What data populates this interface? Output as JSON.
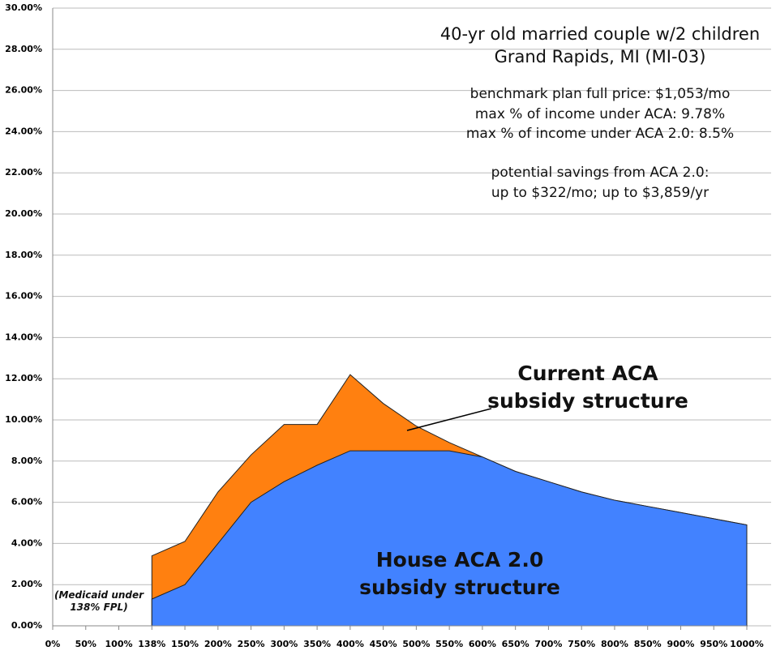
{
  "chart_data": {
    "type": "area",
    "categories": [
      "0%",
      "50%",
      "100%",
      "138%",
      "150%",
      "200%",
      "250%",
      "300%",
      "350%",
      "400%",
      "450%",
      "500%",
      "550%",
      "600%",
      "650%",
      "700%",
      "750%",
      "800%",
      "850%",
      "900%",
      "950%",
      "1000%"
    ],
    "series": [
      {
        "name": "Current ACA subsidy structure",
        "color": "#ff8010",
        "values": [
          null,
          null,
          null,
          3.4,
          4.1,
          6.5,
          8.3,
          9.78,
          9.78,
          12.2,
          10.8,
          9.7,
          8.9,
          8.2,
          7.5,
          7.0,
          6.5,
          6.1,
          5.8,
          5.5,
          5.2,
          4.9
        ]
      },
      {
        "name": "House ACA 2.0 subsidy structure",
        "color": "#4282ff",
        "values": [
          null,
          null,
          null,
          1.3,
          2.0,
          4.0,
          6.0,
          7.0,
          7.8,
          8.5,
          8.5,
          8.5,
          8.5,
          8.2,
          7.5,
          7.0,
          6.5,
          6.1,
          5.8,
          5.5,
          5.2,
          4.9
        ]
      }
    ],
    "ylim": [
      0,
      30
    ],
    "yticks": [
      {
        "value": 0,
        "label": "0.00%"
      },
      {
        "value": 2,
        "label": "2.00%"
      },
      {
        "value": 4,
        "label": "4.00%"
      },
      {
        "value": 6,
        "label": "6.00%"
      },
      {
        "value": 8,
        "label": "8.00%"
      },
      {
        "value": 10,
        "label": "10.00%"
      },
      {
        "value": 12,
        "label": "12.00%"
      },
      {
        "value": 14,
        "label": "14.00%"
      },
      {
        "value": 16,
        "label": "16.00%"
      },
      {
        "value": 18,
        "label": "18.00%"
      },
      {
        "value": 20,
        "label": "20.00%"
      },
      {
        "value": 22,
        "label": "22.00%"
      },
      {
        "value": 24,
        "label": "24.00%"
      },
      {
        "value": 26,
        "label": "26.00%"
      },
      {
        "value": 28,
        "label": "28.00%"
      },
      {
        "value": 30,
        "label": "30.00%"
      }
    ],
    "grid": true,
    "annotations": [
      "40-yr old married couple w/2 children",
      "Grand Rapids, MI (MI-03)",
      "benchmark plan full price: $1,053/mo",
      "max % of income under ACA: 9.78%",
      "max % of income under ACA 2.0: 8.5%",
      "potential savings from ACA 2.0:",
      "up to $322/mo; up to $3,859/yr",
      "(Medicaid under 138% FPL)"
    ]
  }
}
